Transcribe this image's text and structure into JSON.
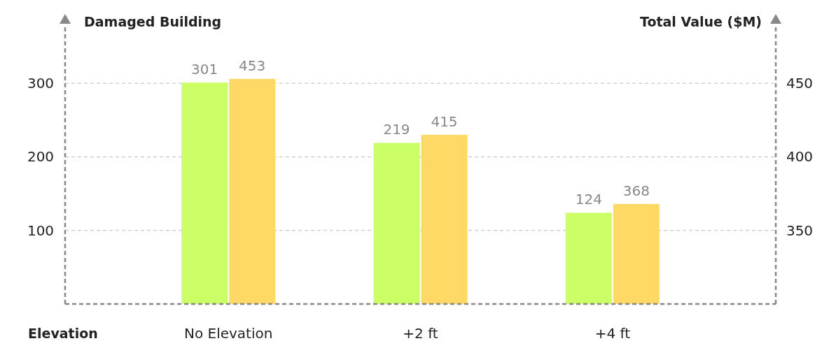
{
  "chart_data": {
    "type": "bar",
    "categories": [
      "No Elevation",
      "+2 ft",
      "+4 ft"
    ],
    "xlabel": "Elevation",
    "ylabel": "Damaged Building",
    "y2label": "Total Value ($M)",
    "series": [
      {
        "color": "#ccff66",
        "values": [
          301,
          219,
          124
        ]
      },
      {
        "color": "#ffd966",
        "values": [
          453,
          415,
          368
        ],
        "axis": "y2"
      }
    ],
    "ylim": [
      0,
      380
    ],
    "yticks": [
      100,
      200,
      300
    ],
    "y2lim": [
      300,
      490
    ],
    "y2ticks": [
      350,
      400,
      450
    ],
    "grid": "y",
    "data_labels": true
  }
}
